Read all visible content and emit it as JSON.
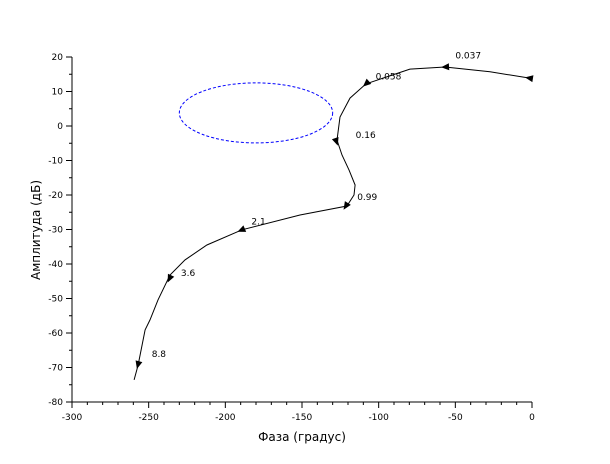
{
  "chart_data": {
    "type": "line",
    "xlabel": "Фаза (градус)",
    "ylabel": "Амплитуда (дБ)",
    "xlim": [
      -300,
      0
    ],
    "ylim": [
      -80,
      20
    ],
    "xticks": [
      -300,
      -250,
      -200,
      -150,
      -100,
      -50,
      0
    ],
    "yticks": [
      20,
      10,
      0,
      -10,
      -20,
      -30,
      -40,
      -50,
      -60,
      -70,
      -80
    ],
    "grid": false,
    "series": [
      {
        "color": "#000000",
        "points": [
          [
            -2,
            13.9
          ],
          [
            -27.4,
            15.7
          ],
          [
            -56.7,
            17.1
          ],
          [
            -79.6,
            16.5
          ],
          [
            -108.3,
            12.2
          ],
          [
            -118.7,
            8.1
          ],
          [
            -125.2,
            2.6
          ],
          [
            -127.2,
            -4.1
          ],
          [
            -123.9,
            -8.4
          ],
          [
            -119.3,
            -12.8
          ],
          [
            -115.4,
            -17.1
          ],
          [
            -116.1,
            -20
          ],
          [
            -120.7,
            -23.2
          ],
          [
            -151.3,
            -25.8
          ],
          [
            -189.1,
            -30.1
          ],
          [
            -212,
            -34.5
          ],
          [
            -226.3,
            -38.8
          ],
          [
            -236.1,
            -43.2
          ],
          [
            -243.9,
            -50.4
          ],
          [
            -249.1,
            -56.2
          ],
          [
            -252.3,
            -59.1
          ],
          [
            -256.9,
            -69.3
          ],
          [
            -259.5,
            -73.6
          ]
        ]
      }
    ],
    "frequency_marks": [
      {
        "label": "0.037",
        "x": -56.7,
        "y": 17.1,
        "label_at": [
          -50,
          19.5
        ]
      },
      {
        "label": "0.058",
        "x": -108.3,
        "y": 12.2,
        "label_at": [
          -102,
          13.5
        ]
      },
      {
        "label": "0.16",
        "x": -127.5,
        "y": -4.6,
        "label_at": [
          -115,
          -3.5
        ]
      },
      {
        "label": "0.99",
        "x": -121.5,
        "y": -23.3,
        "label_at": [
          -114,
          -21.5
        ]
      },
      {
        "label": "2.1",
        "x": -189.7,
        "y": -30.2,
        "label_at": [
          -183,
          -28.5
        ]
      },
      {
        "label": "3.6",
        "x": -236.5,
        "y": -44.3,
        "label_at": [
          -229,
          -43.5
        ]
      },
      {
        "label": "8.8",
        "x": -257,
        "y": -69.3,
        "label_at": [
          -248,
          -67
        ]
      }
    ],
    "start_arrow": {
      "x": -2,
      "y": 13.9
    },
    "m_circle": {
      "color": "#0000ff",
      "center": [
        -180,
        3.8
      ],
      "half_width_deg": 50,
      "half_height_db": 8.7,
      "style": "dashed"
    }
  }
}
